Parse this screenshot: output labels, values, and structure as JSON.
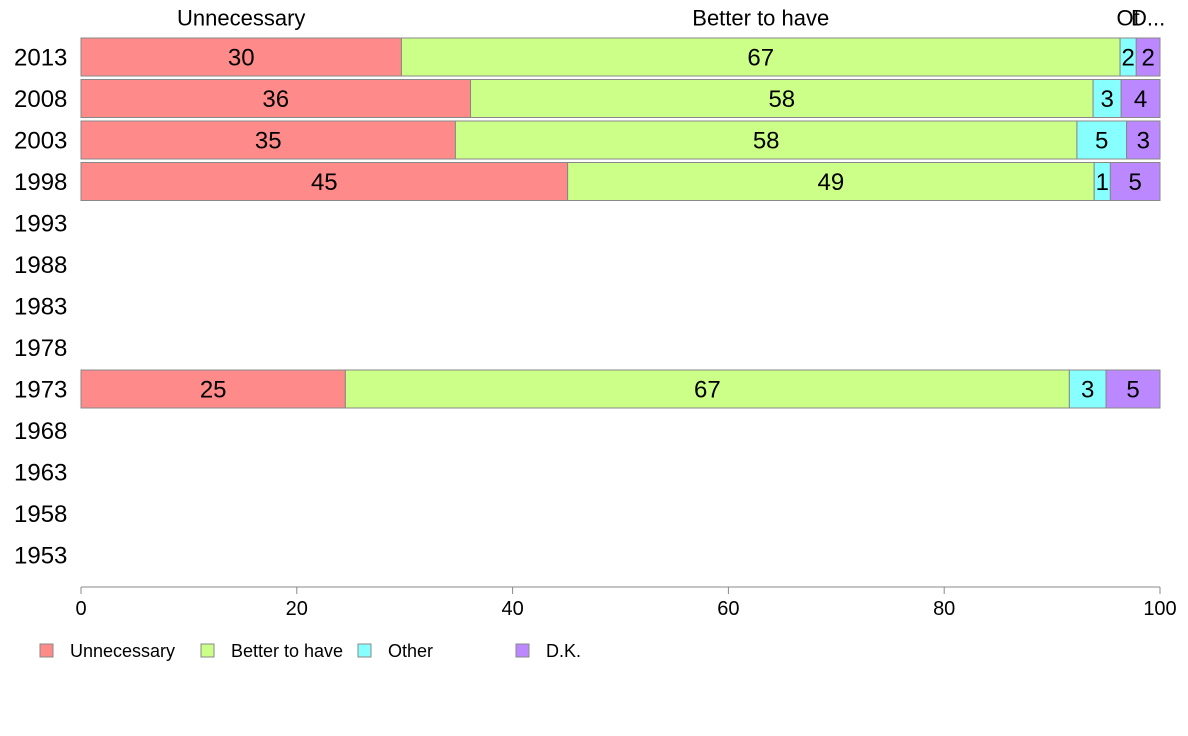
{
  "chart_data": {
    "type": "bar",
    "orientation": "horizontal",
    "stacked": true,
    "categories": [
      "2013",
      "2008",
      "2003",
      "1998",
      "1993",
      "1988",
      "1983",
      "1978",
      "1973",
      "1968",
      "1963",
      "1958",
      "1953"
    ],
    "series": [
      {
        "name": "Unnecessary",
        "color": "#ff8a8a",
        "values": [
          30,
          36,
          35,
          45,
          null,
          null,
          null,
          null,
          25,
          null,
          null,
          null,
          null
        ],
        "exact": [
          29.7,
          36.1,
          34.7,
          45.1,
          null,
          null,
          null,
          null,
          24.5,
          null,
          null,
          null,
          null
        ]
      },
      {
        "name": "Better to have",
        "color": "#ccff88",
        "values": [
          67,
          58,
          58,
          49,
          null,
          null,
          null,
          null,
          67,
          null,
          null,
          null,
          null
        ],
        "exact": [
          66.6,
          57.7,
          57.6,
          48.8,
          null,
          null,
          null,
          null,
          67.1,
          null,
          null,
          null,
          null
        ]
      },
      {
        "name": "Other",
        "color": "#88ffff",
        "values": [
          2,
          3,
          5,
          1,
          null,
          null,
          null,
          null,
          3,
          null,
          null,
          null,
          null
        ],
        "exact": [
          1.5,
          2.6,
          4.6,
          1.5,
          null,
          null,
          null,
          null,
          3.4,
          null,
          null,
          null,
          null
        ]
      },
      {
        "name": "D.K.",
        "color": "#bb88ff",
        "values": [
          2,
          4,
          3,
          5,
          null,
          null,
          null,
          null,
          5,
          null,
          null,
          null,
          null
        ],
        "exact": [
          2.2,
          3.6,
          3.1,
          4.6,
          null,
          null,
          null,
          null,
          5.0,
          null,
          null,
          null,
          null
        ]
      }
    ],
    "top_labels": [
      "Unnecessary",
      "Better to have",
      "Ot",
      "D..."
    ],
    "xlim": [
      0,
      100
    ],
    "xticks": [
      0,
      20,
      40,
      60,
      80,
      100
    ],
    "grid": false,
    "legend_position": "bottom-left"
  }
}
